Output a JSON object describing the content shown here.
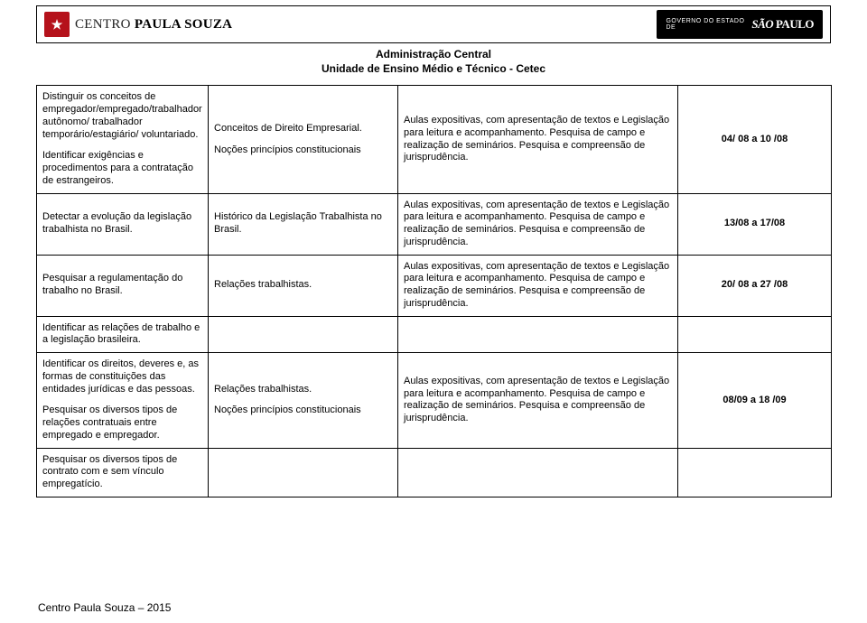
{
  "header": {
    "logo_glyph": "★",
    "logo_thin": "CENTRO ",
    "logo_bold": "PAULA SOUZA",
    "gov_line1": "GOVERNO DO ESTADO",
    "gov_line2": "DE",
    "sp_sao": "SÃO",
    "sp_paulo": "PAULO",
    "subtitle_l1": "Administração Central",
    "subtitle_l2": "Unidade de Ensino Médio e Técnico - Cetec"
  },
  "rows": [
    {
      "col1_p1": "Distinguir os conceitos de empregador/empregado/trabalhador autônomo/ trabalhador temporário/estagiário/ voluntariado.",
      "col1_p2": "Identificar exigências e procedimentos para a contratação de estrangeiros.",
      "col2_p1": "Conceitos de Direito Empresarial.",
      "col2_p2": "Noções princípios constitucionais",
      "col3_p1": "Aulas expositivas, com apresentação de textos e Legislação para leitura e acompanhamento. Pesquisa de campo e realização de seminários. Pesquisa e compreensão de jurisprudência.",
      "col4": "04/ 08 a 10 /08"
    },
    {
      "col1_p1": "Detectar a evolução da legislação trabalhista no Brasil.",
      "col2_p1": "Histórico da Legislação Trabalhista no Brasil.",
      "col3_p1": "Aulas expositivas, com apresentação de textos e Legislação para leitura e acompanhamento. Pesquisa de campo e realização de seminários. Pesquisa e compreensão de jurisprudência.",
      "col4": "13/08 a 17/08"
    },
    {
      "col1_p1": "Pesquisar a regulamentação do trabalho no Brasil.",
      "col2_p1": "Relações trabalhistas.",
      "col3_p1": "Aulas expositivas, com apresentação de textos e Legislação para leitura e acompanhamento. Pesquisa de campo e realização de seminários. Pesquisa e compreensão de jurisprudência.",
      "col4": "20/ 08 a 27 /08"
    },
    {
      "col1_p1": "Identificar as relações de trabalho e a legislação brasileira.",
      "col2_p1": "",
      "col3_p1": "",
      "col4": ""
    },
    {
      "col1_p1": "Identificar os direitos, deveres e, as formas de constituições das entidades jurídicas e das pessoas.",
      "col1_p2": "Pesquisar os diversos tipos de relações contratuais entre empregado e empregador.",
      "col2_p1": "Relações trabalhistas.",
      "col2_p2": "Noções princípios constitucionais",
      "col3_p1": "Aulas expositivas, com apresentação de textos e Legislação para leitura e acompanhamento. Pesquisa de campo e realização de seminários. Pesquisa e compreensão de jurisprudência.",
      "col4": "08/09 a 18 /09"
    },
    {
      "col1_p1": "Pesquisar os diversos tipos de contrato com e sem vínculo empregatício.",
      "col2_p1": "",
      "col3_p1": "",
      "col4": ""
    }
  ],
  "footer": "Centro Paula Souza – 2015"
}
